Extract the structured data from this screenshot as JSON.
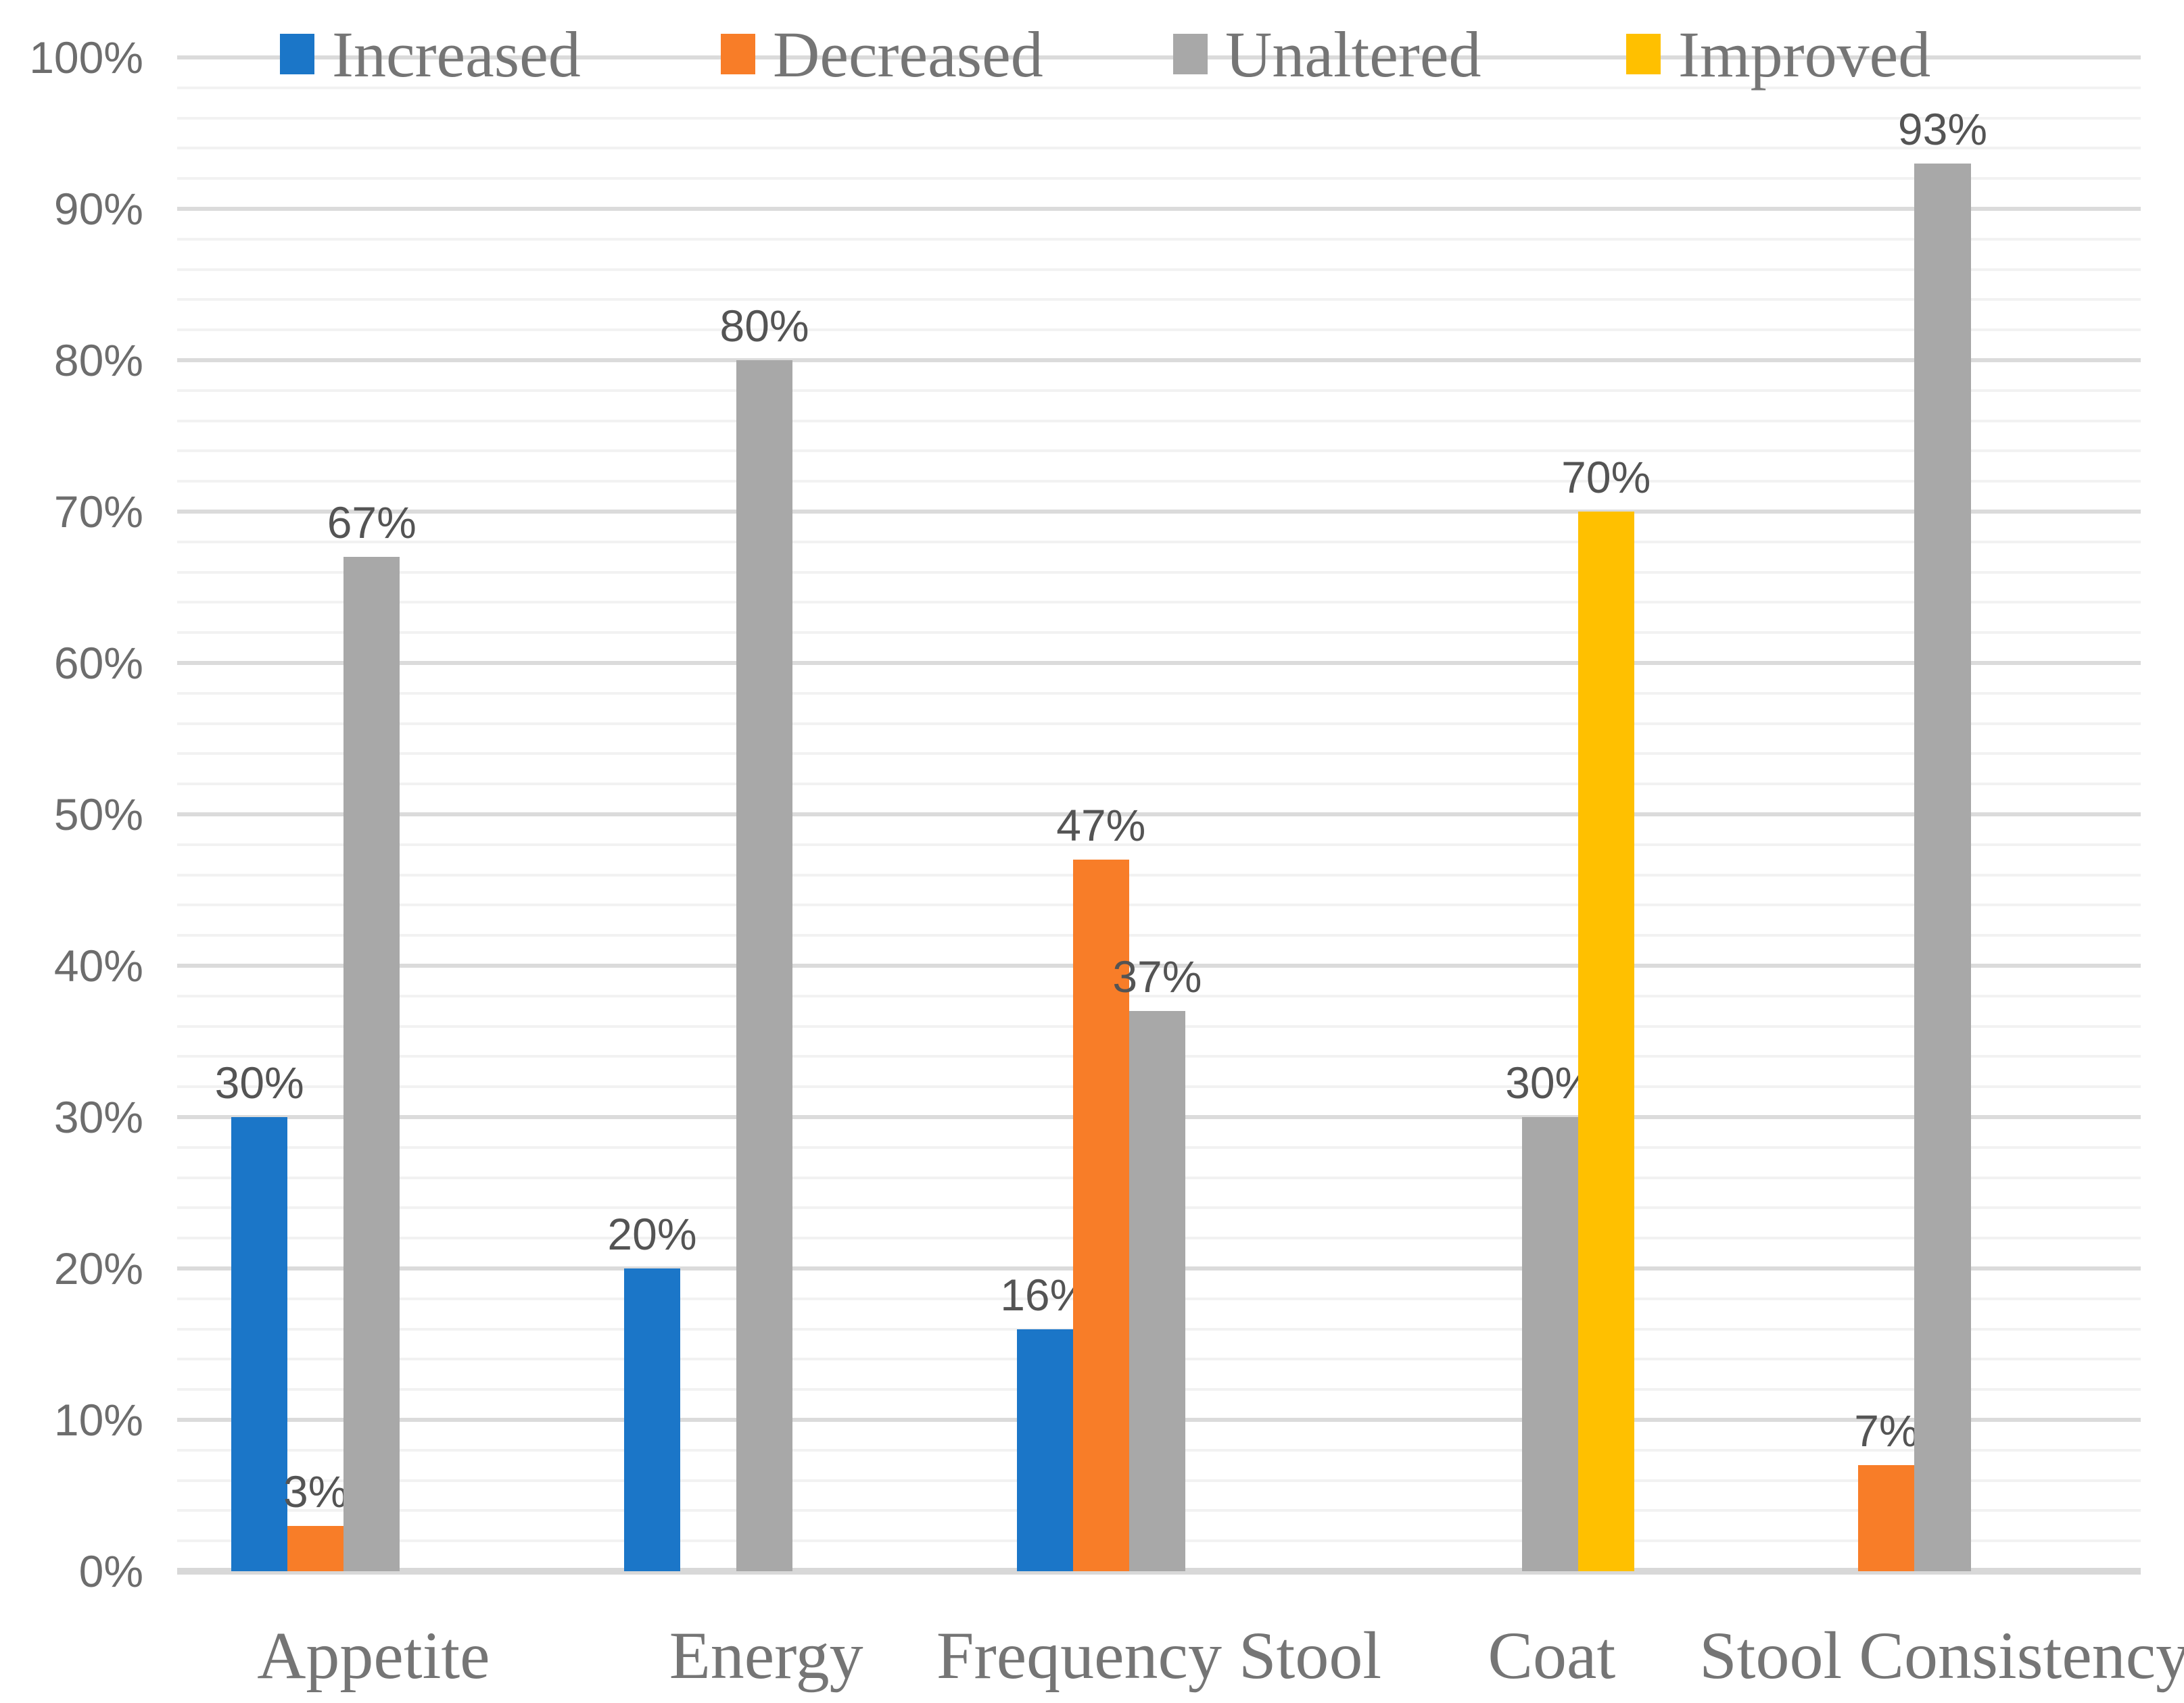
{
  "chart_data": {
    "type": "bar",
    "categories": [
      "Appetite",
      "Energy",
      "Frequency Stool",
      "Coat",
      "Stool Consistency"
    ],
    "series": [
      {
        "name": "Increased",
        "color": "#1B76C8",
        "values": [
          30,
          20,
          16,
          0,
          0
        ]
      },
      {
        "name": "Decreased",
        "color": "#F87D28",
        "values": [
          3,
          0,
          47,
          0,
          7
        ]
      },
      {
        "name": "Unaltered",
        "color": "#A8A8A8",
        "values": [
          67,
          80,
          37,
          30,
          93
        ]
      },
      {
        "name": "Improved",
        "color": "#FFC000",
        "values": [
          0,
          0,
          0,
          70,
          0
        ]
      }
    ],
    "data_label_format": "{v}%",
    "y_axis": {
      "min": 0,
      "max": 100,
      "major_step": 10,
      "minor_step": 2,
      "tick_labels": [
        "0%",
        "10%",
        "20%",
        "30%",
        "40%",
        "50%",
        "60%",
        "70%",
        "80%",
        "90%",
        "100%"
      ]
    },
    "legend_position": "top",
    "grid": true,
    "title": "",
    "xlabel": "",
    "ylabel": ""
  },
  "style_colors": {
    "major_gridline": "#DBDBDB",
    "minor_gridline": "#F2F2F2",
    "axis_line": "#D8D8D8",
    "tick_label_text": "#6d6d6d",
    "data_label_text": "#545454",
    "category_label_text": "#757575",
    "legend_text": "#757575",
    "background": "#ffffff"
  }
}
